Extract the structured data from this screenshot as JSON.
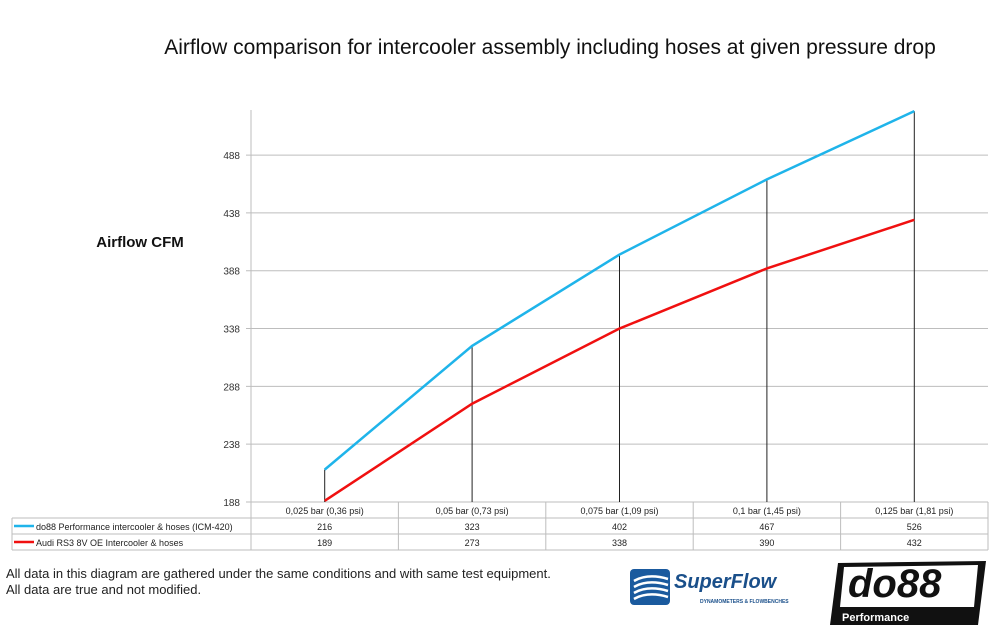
{
  "chart_data": {
    "type": "line",
    "title": "Airflow comparison for intercooler assembly including hoses at given pressure drop",
    "xlabel": "",
    "ylabel": "Airflow CFM",
    "categories": [
      "0,025 bar (0,36 psi)",
      "0,05 bar (0,73 psi)",
      "0,075 bar (1,09 psi)",
      "0,1 bar (1,45 psi)",
      "0,125 bar (1,81 psi)"
    ],
    "series": [
      {
        "name": "do88 Performance intercooler & hoses (ICM-420)",
        "values": [
          216,
          323,
          402,
          467,
          526
        ],
        "color": "#1fb4ea"
      },
      {
        "name": "Audi RS3 8V OE Intercooler & hoses",
        "values": [
          189,
          273,
          338,
          390,
          432
        ],
        "color": "#f01010"
      }
    ],
    "yticks": [
      "188",
      "238",
      "288",
      "338",
      "388",
      "438",
      "488"
    ],
    "ylim": [
      188,
      527
    ],
    "grid": true,
    "legend": "data-table-below",
    "drop_lines": true
  },
  "footnote": {
    "line1": "All data in this diagram are gathered under the same conditions and with same test equipment.",
    "line2": "All data are true and not modified."
  },
  "logos": {
    "superflow": "SuperFlow",
    "superflow_tagline": "DYNAMOMETERS & FLOWBENCHES",
    "do88": "do88",
    "do88_sub": "Performance"
  }
}
